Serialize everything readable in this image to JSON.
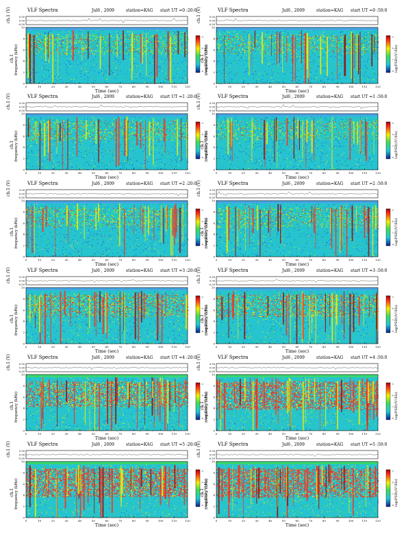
{
  "header": {
    "title": "VLF Spectra",
    "date": "Jul6 , 2009",
    "station": "station=KAG"
  },
  "labels": {
    "amp_axis": "ch.1 (V)",
    "amp_ticks": [
      "0.50",
      "0.00",
      "-0.50"
    ],
    "freq_axis_ch": "ch.1",
    "freq_axis": "frequency  (kHz)",
    "freq_ticks": [
      "0",
      "2",
      "4",
      "6",
      "8",
      "10"
    ],
    "time_axis": "Time  (sec)",
    "colorbar": "log(PSD)(V²/Hz)",
    "colorbar_ticks": [
      "-5",
      "-6",
      "-7",
      "-8"
    ]
  },
  "colors": {
    "background": "#26c4d0",
    "blue": "#1f5fd6",
    "green": "#3fdc5a",
    "yellow": "#f4f000",
    "red": "#ff2a1a",
    "dark": "#9a0808"
  },
  "chart_data": [
    {
      "type": "heatmap",
      "panel": "spectrogram",
      "start_label": "start  UT =0 :20:0",
      "x_ticks": [
        "0",
        "10",
        "20",
        "30",
        "40",
        "50",
        "60",
        "70",
        "80",
        "90",
        "100",
        "110",
        "120"
      ],
      "xlim": [
        0,
        120
      ],
      "ylim": [
        0,
        10
      ],
      "activity": 0.22
    },
    {
      "type": "heatmap",
      "panel": "spectrogram",
      "start_label": "start  UT =0 :50:0",
      "x_ticks": [
        "0",
        "10",
        "20",
        "30",
        "40",
        "50",
        "60",
        "70",
        "80",
        "90",
        "100",
        "110",
        "120"
      ],
      "xlim": [
        0,
        120
      ],
      "ylim": [
        0,
        10
      ],
      "activity": 0.18
    },
    {
      "type": "heatmap",
      "panel": "spectrogram",
      "start_label": "start  UT =1 :20:0",
      "x_ticks": [
        "0",
        "10",
        "20",
        "30",
        "40",
        "50",
        "60",
        "70",
        "80",
        "90",
        "100",
        "110",
        "120"
      ],
      "xlim": [
        0,
        120
      ],
      "ylim": [
        0,
        10
      ],
      "activity": 0.2
    },
    {
      "type": "heatmap",
      "panel": "spectrogram",
      "start_label": "start  UT =1 :50:0",
      "x_ticks": [
        "0",
        "10",
        "20",
        "30",
        "40",
        "50",
        "60",
        "70",
        "80",
        "90",
        "100",
        "110",
        "120"
      ],
      "xlim": [
        0,
        120
      ],
      "ylim": [
        0,
        10
      ],
      "activity": 0.16
    },
    {
      "type": "heatmap",
      "panel": "spectrogram",
      "start_label": "start  UT =2 :20:0",
      "x_ticks": [
        "0",
        "10",
        "20",
        "30",
        "40",
        "50",
        "60",
        "70",
        "80",
        "90",
        "100",
        "110",
        "120"
      ],
      "xlim": [
        0,
        120
      ],
      "ylim": [
        0,
        10
      ],
      "activity": 0.2
    },
    {
      "type": "heatmap",
      "panel": "spectrogram",
      "start_label": "start  UT =2 :50:0",
      "x_ticks": [
        "0",
        "10",
        "20",
        "30",
        "40",
        "50",
        "60",
        "70",
        "80",
        "90",
        "100",
        "110",
        "120"
      ],
      "xlim": [
        0,
        120
      ],
      "ylim": [
        0,
        10
      ],
      "activity": 0.2
    },
    {
      "type": "heatmap",
      "panel": "spectrogram",
      "start_label": "start  UT =3 :20:0",
      "x_ticks": [
        "0",
        "10",
        "20",
        "30",
        "40",
        "50",
        "60",
        "70",
        "80",
        "90",
        "100",
        "110",
        "120"
      ],
      "xlim": [
        0,
        120
      ],
      "ylim": [
        0,
        10
      ],
      "activity": 0.38
    },
    {
      "type": "heatmap",
      "panel": "spectrogram",
      "start_label": "start  UT =3 :50:0",
      "x_ticks": [
        "0",
        "10",
        "20",
        "30",
        "40",
        "50",
        "60",
        "70",
        "80",
        "90",
        "100",
        "110",
        "120"
      ],
      "xlim": [
        0,
        120
      ],
      "ylim": [
        0,
        10
      ],
      "activity": 0.4
    },
    {
      "type": "heatmap",
      "panel": "spectrogram",
      "start_label": "start  UT =4 :20:0",
      "x_ticks": [
        "0",
        "10",
        "20",
        "30",
        "40",
        "50",
        "60",
        "70",
        "80",
        "90",
        "100",
        "110",
        "120"
      ],
      "xlim": [
        0,
        120
      ],
      "ylim": [
        0,
        10
      ],
      "activity": 0.6
    },
    {
      "type": "heatmap",
      "panel": "spectrogram",
      "start_label": "start  UT =4 :50:0",
      "x_ticks": [
        "0",
        "10",
        "20",
        "30",
        "40",
        "50",
        "60",
        "70",
        "80",
        "90",
        "100",
        "110",
        "120"
      ],
      "xlim": [
        0,
        120
      ],
      "ylim": [
        0,
        10
      ],
      "activity": 0.8
    },
    {
      "type": "heatmap",
      "panel": "spectrogram",
      "start_label": "start  UT =5 :20:0",
      "x_ticks": [
        "0",
        "10",
        "20",
        "30",
        "40",
        "50",
        "60",
        "70",
        "80",
        "90",
        "100",
        "110",
        "120"
      ],
      "xlim": [
        0,
        120
      ],
      "ylim": [
        0,
        10
      ],
      "activity": 0.82
    },
    {
      "type": "heatmap",
      "panel": "spectrogram",
      "start_label": "start  UT =5 :50:0",
      "x_ticks": [
        "0",
        "10",
        "20",
        "30",
        "40",
        "50",
        "60",
        "70",
        "80",
        "90",
        "100",
        "110",
        "120"
      ],
      "xlim": [
        0,
        120
      ],
      "ylim": [
        0,
        10
      ],
      "activity": 0.85
    }
  ]
}
